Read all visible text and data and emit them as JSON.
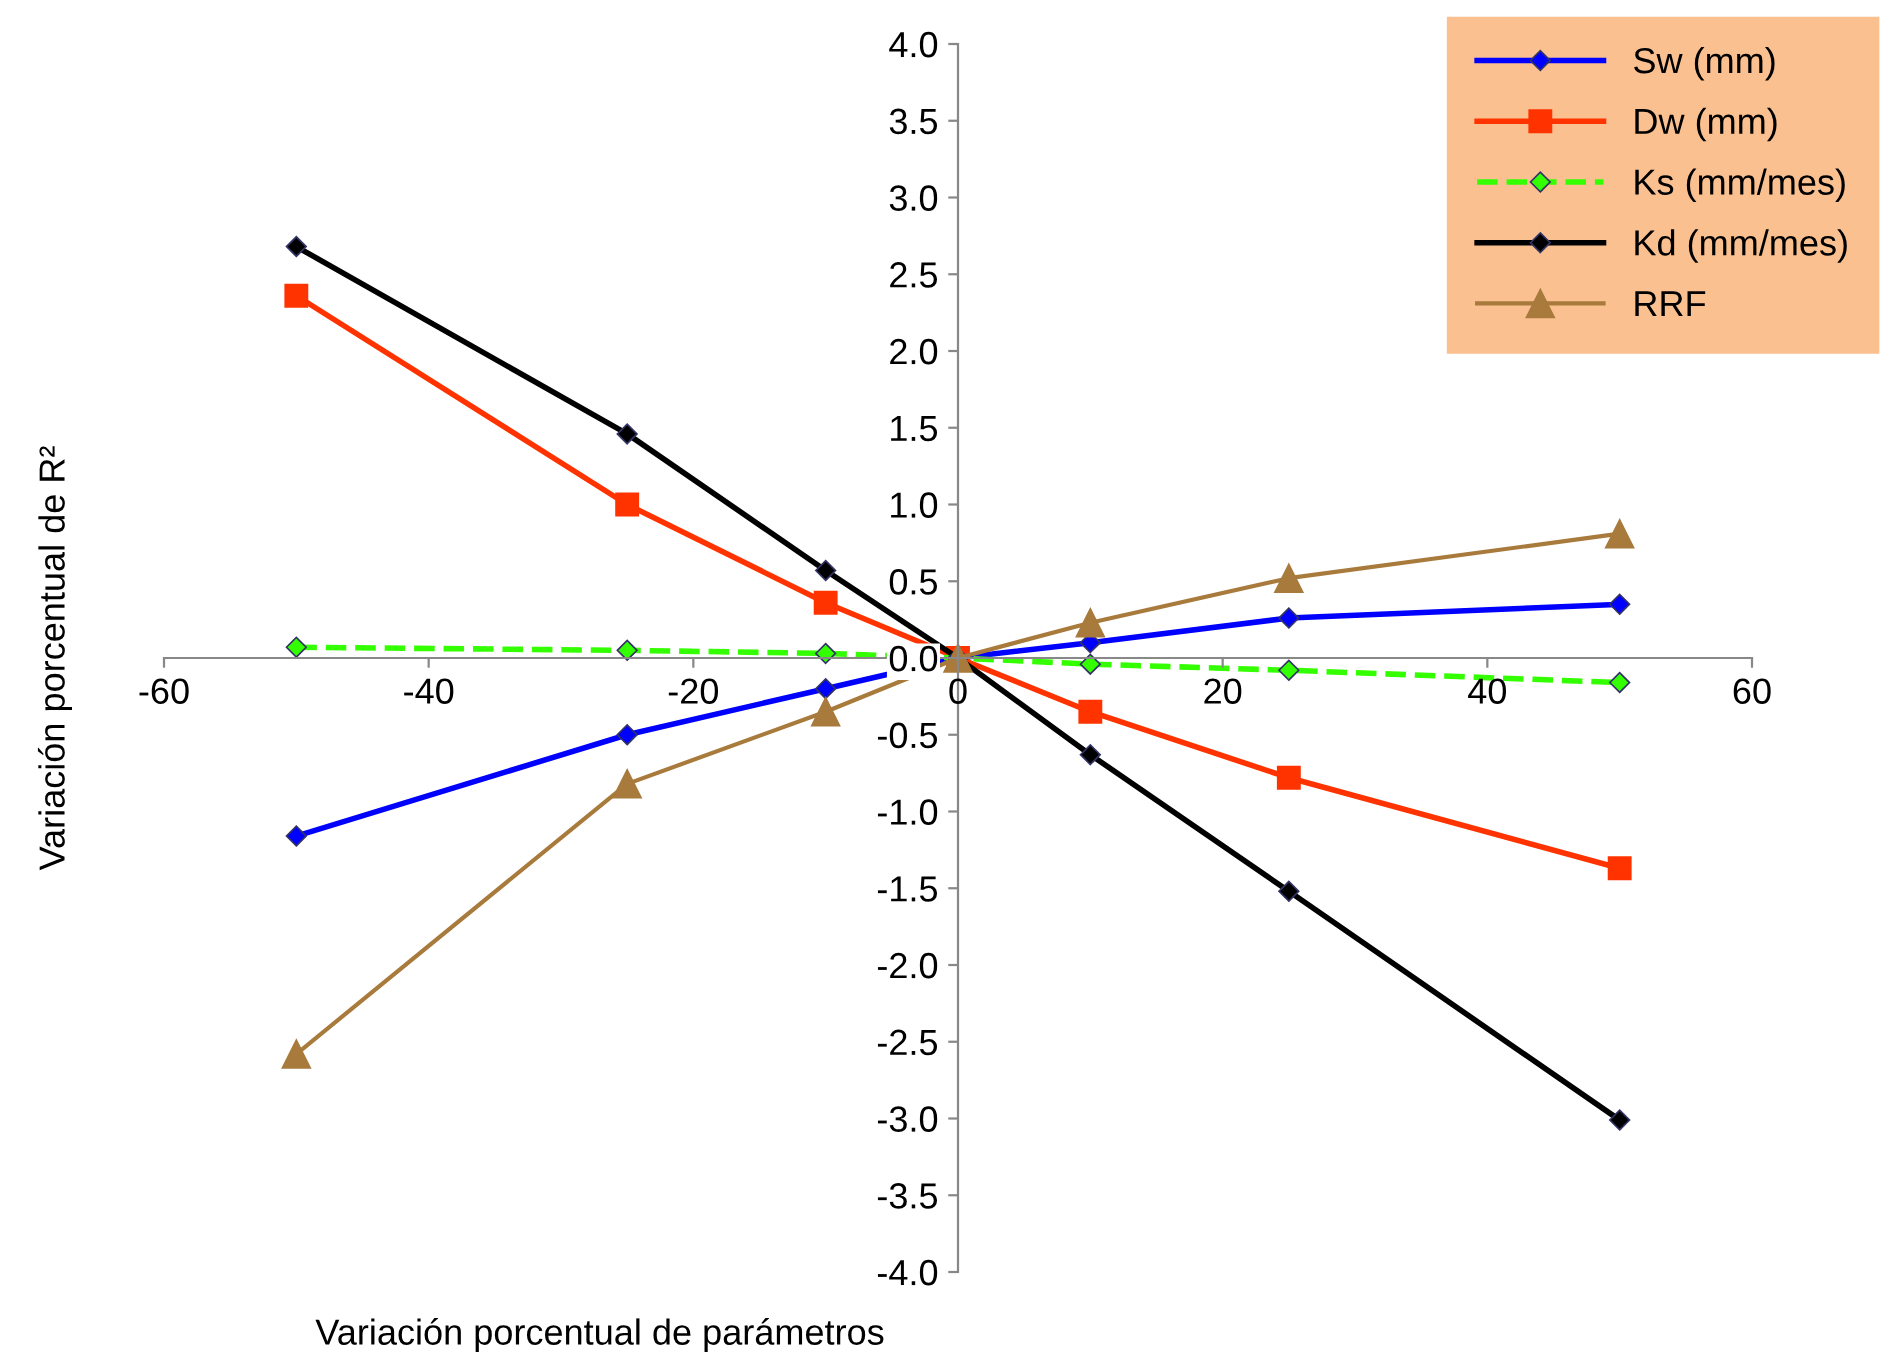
{
  "chart_data": {
    "type": "line",
    "xlabel": "Variación porcentual de parámetros",
    "ylabel": "Variación porcentual de R²",
    "x": [
      -50,
      -25,
      -10,
      0,
      10,
      25,
      50
    ],
    "series": [
      {
        "name": "Sw (mm)",
        "color": "#0000ff",
        "marker": "diamond",
        "line_style": "solid",
        "values": [
          -1.16,
          -0.5,
          -0.2,
          0,
          0.1,
          0.26,
          0.35
        ]
      },
      {
        "name": "Dw (mm)",
        "color": "#ff3300",
        "marker": "square",
        "line_style": "solid",
        "values": [
          2.36,
          1.0,
          0.36,
          0,
          -0.35,
          -0.78,
          -1.37
        ]
      },
      {
        "name": "Ks (mm/mes)",
        "color": "#33ff00",
        "marker": "diamond",
        "line_style": "dashed",
        "values": [
          0.07,
          0.05,
          0.03,
          0,
          -0.04,
          -0.08,
          -0.16
        ]
      },
      {
        "name": "Kd (mm/mes)",
        "color": "#000000",
        "marker": "diamond",
        "line_style": "solid",
        "values": [
          2.68,
          1.46,
          0.57,
          0,
          -0.63,
          -1.52,
          -3.01
        ]
      },
      {
        "name": "RRF",
        "color": "#a87a3c",
        "marker": "triangle",
        "line_style": "solid",
        "values": [
          -2.58,
          -0.82,
          -0.35,
          0,
          0.23,
          0.52,
          0.81
        ]
      }
    ],
    "xlim": [
      -60,
      60
    ],
    "xticks": [
      -60,
      -40,
      -20,
      0,
      20,
      40,
      60
    ],
    "ylim": [
      -4,
      4
    ],
    "yticks": [
      {
        "value": -4,
        "label": "-4.0"
      },
      {
        "value": -3.5,
        "label": "-3.5"
      },
      {
        "value": -3,
        "label": "-3.0"
      },
      {
        "value": -2.5,
        "label": "-2.5"
      },
      {
        "value": -2,
        "label": "-2.0"
      },
      {
        "value": -1.5,
        "label": "-1.5"
      },
      {
        "value": -1,
        "label": "-1.0"
      },
      {
        "value": -0.5,
        "label": "-0.5"
      },
      {
        "value": 0,
        "label": "0.0"
      },
      {
        "value": 0.5,
        "label": "0.5"
      },
      {
        "value": 1,
        "label": "1.0"
      },
      {
        "value": 1.5,
        "label": "1.5"
      },
      {
        "value": 2,
        "label": "2.0"
      },
      {
        "value": 2.5,
        "label": "2.5"
      },
      {
        "value": 3,
        "label": "3.0"
      },
      {
        "value": 3.5,
        "label": "3.5"
      },
      {
        "value": 4,
        "label": "4.0"
      }
    ],
    "grid": false,
    "legend": "top right"
  }
}
